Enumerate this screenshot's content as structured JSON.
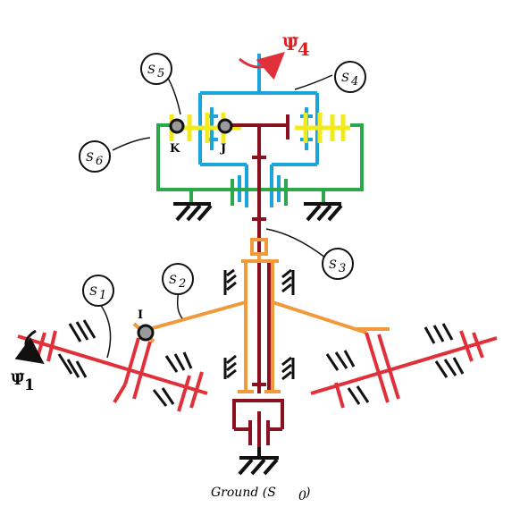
{
  "colors": {
    "blue": "#1ba3dc",
    "yellow": "#f2ea1c",
    "green": "#2aa84a",
    "maroon": "#8b1020",
    "orange": "#f09a3c",
    "red": "#e0303a",
    "black": "#111111",
    "grey": "#9a9a9a"
  },
  "labels": {
    "s1": "S",
    "s1_sub": "1",
    "s2": "S",
    "s2_sub": "2",
    "s3": "S",
    "s3_sub": "3",
    "s4": "S",
    "s4_sub": "4",
    "s5": "S",
    "s5_sub": "5",
    "s6": "S",
    "s6_sub": "6",
    "k": "K",
    "j": "J",
    "i": "I",
    "psi4": "Ψ̇",
    "psi4_sub": "4",
    "psi1": "Ψ̇",
    "psi1_sub": "1",
    "ground": "Ground (S",
    "ground_sub": "0",
    "ground_close": ")"
  }
}
